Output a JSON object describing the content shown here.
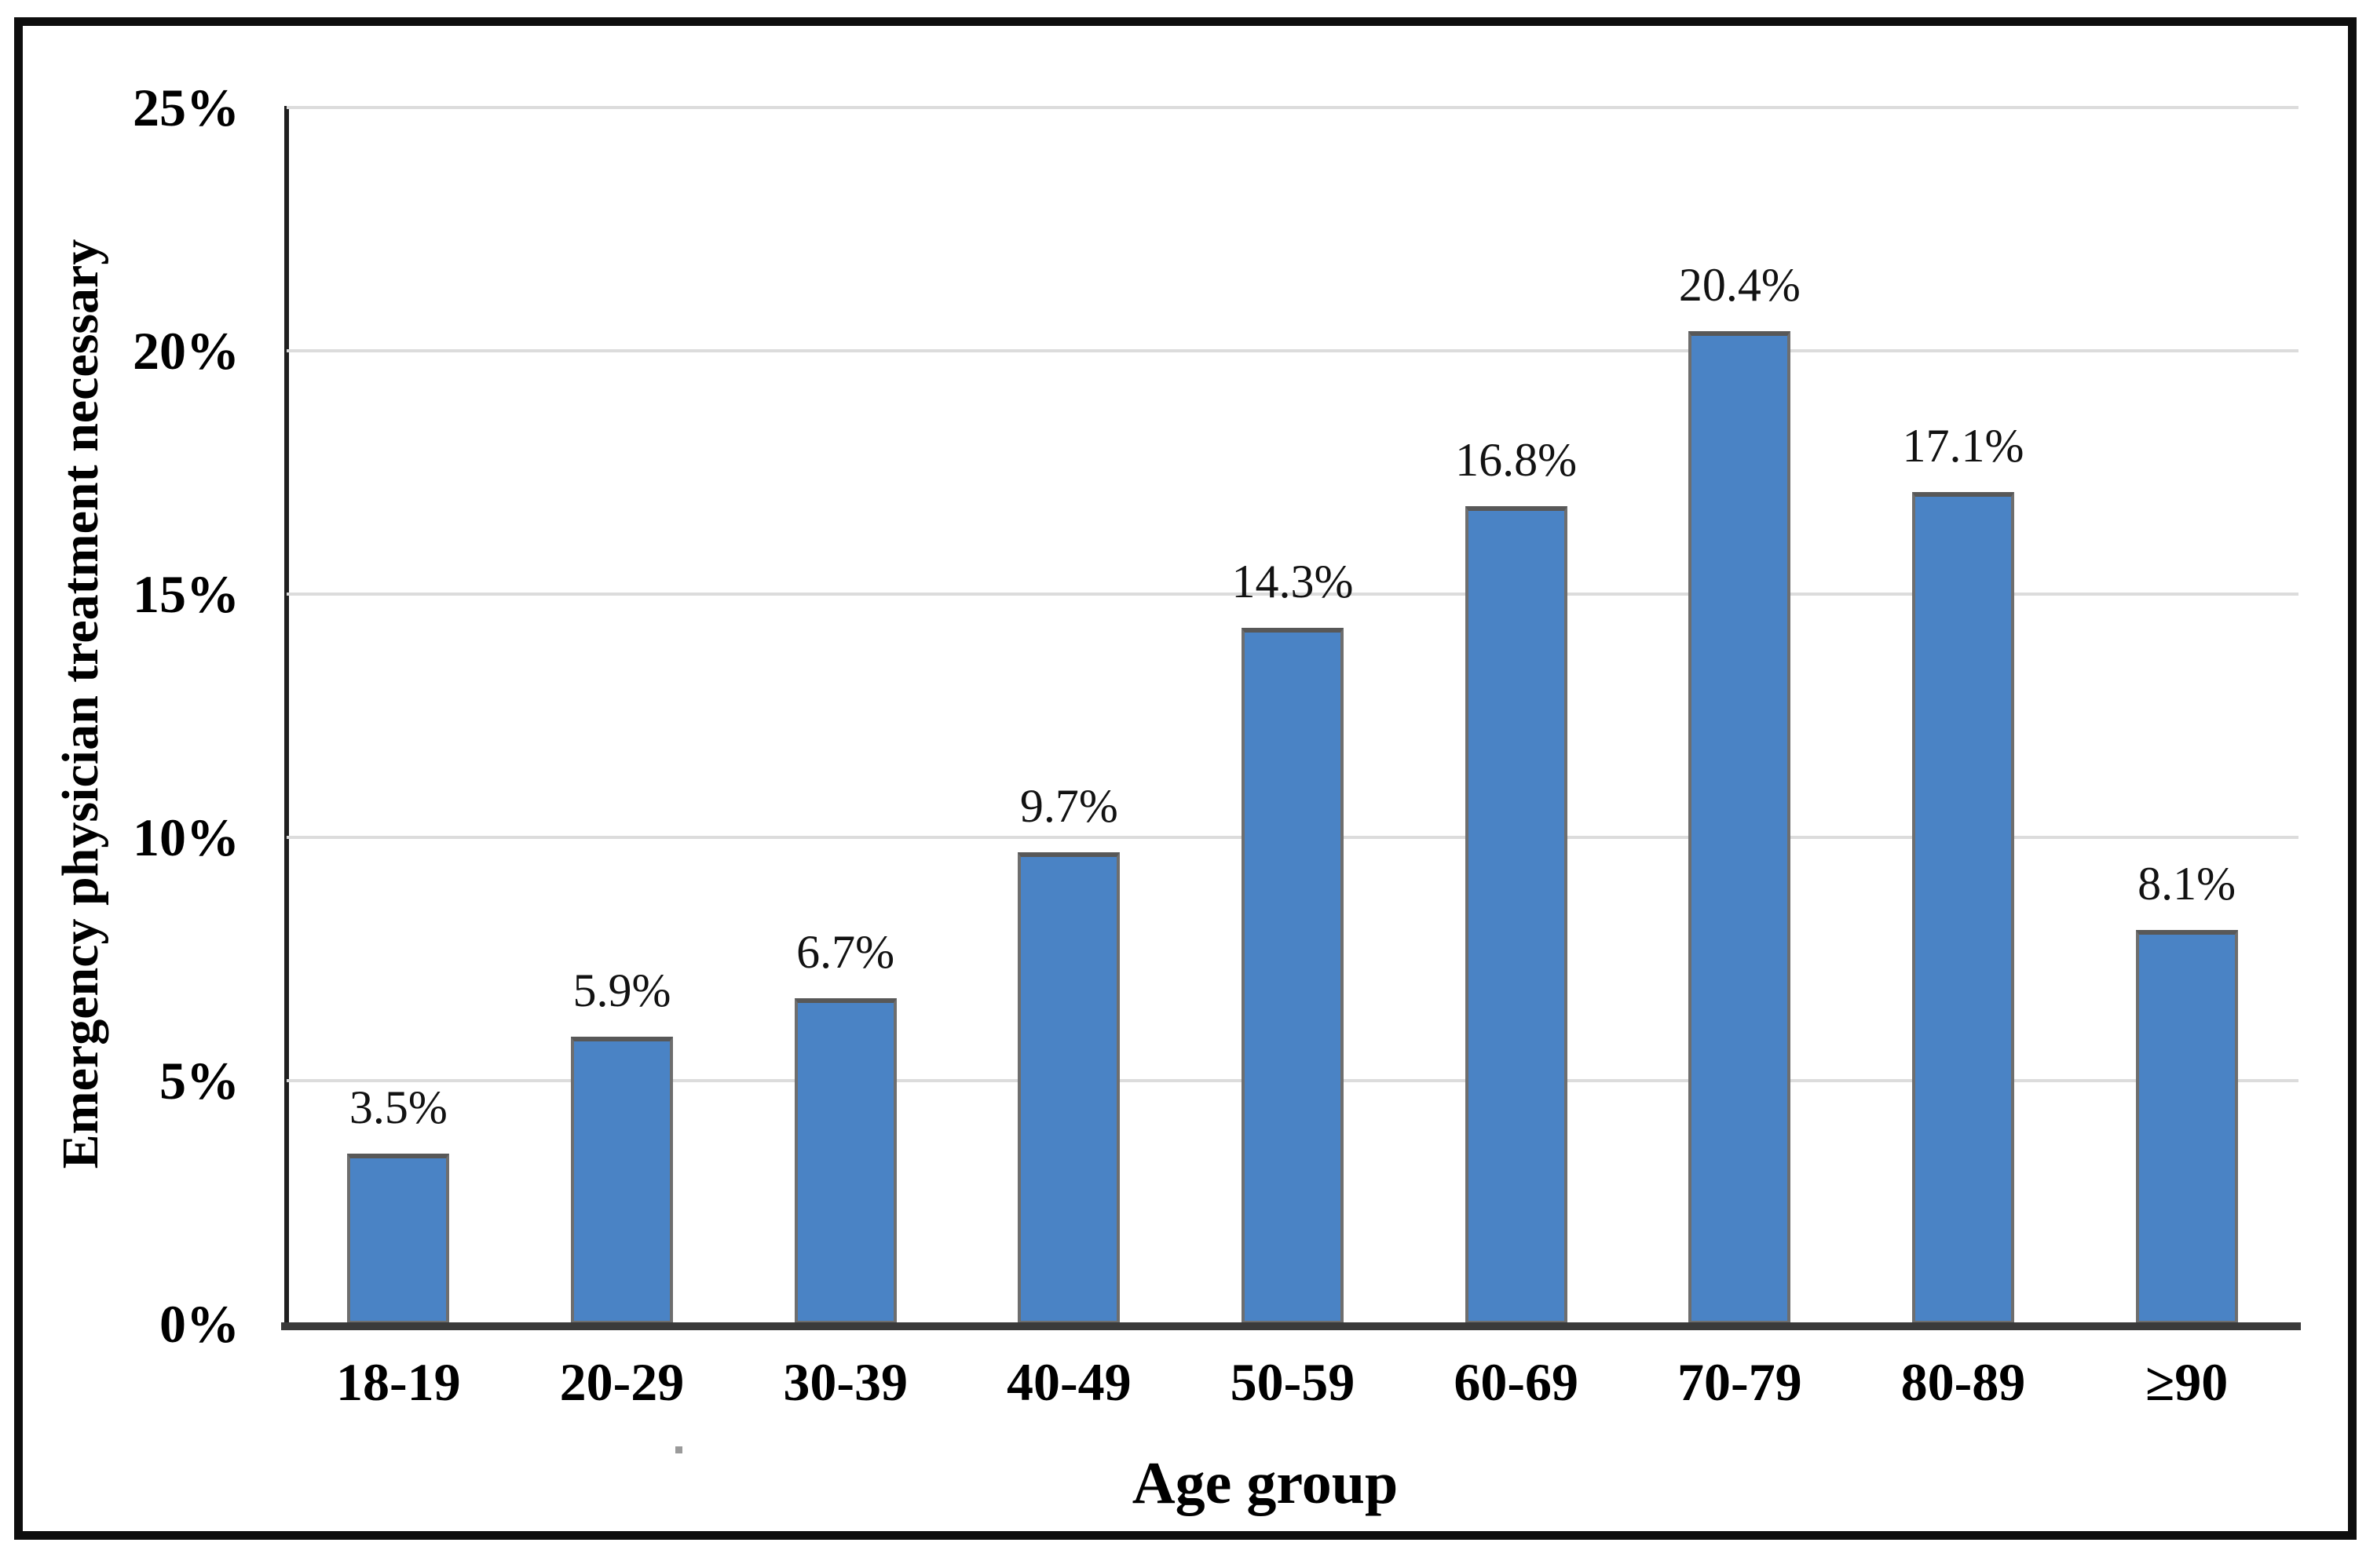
{
  "chart_data": {
    "type": "bar",
    "title": "",
    "categories": [
      "18-19",
      "20-29",
      "30-39",
      "40-49",
      "50-59",
      "60-69",
      "70-79",
      "80-89",
      "≥90"
    ],
    "values": [
      3.5,
      5.9,
      6.7,
      9.7,
      14.3,
      16.8,
      20.4,
      17.1,
      8.1
    ],
    "value_labels": [
      "3.5%",
      "5.9%",
      "6.7%",
      "9.7%",
      "14.3%",
      "16.8%",
      "20.4%",
      "17.1%",
      "8.1%"
    ],
    "xlabel": "Age group",
    "ylabel": "Emergency physician treatment necessary",
    "y_ticks": [
      {
        "label": "25%",
        "value": 25
      },
      {
        "label": "20%",
        "value": 20
      },
      {
        "label": "15%",
        "value": 15
      },
      {
        "label": "10%",
        "value": 10
      },
      {
        "label": "5%",
        "value": 5
      },
      {
        "label": "0%",
        "value": 0
      }
    ],
    "ylim": [
      0,
      25
    ],
    "grid": "horizontal",
    "legend_position": "none",
    "colors": {
      "bar_fill": "#4A83C5",
      "bar_border": "#6E6E6E",
      "bar_border_top": "#585858",
      "gridline": "#DCDCDC",
      "y_axis_line": "#1F1F1F",
      "x_axis_line": "#3A3A3A",
      "text": "#000000",
      "figure_border": "#0E0E0E"
    }
  }
}
